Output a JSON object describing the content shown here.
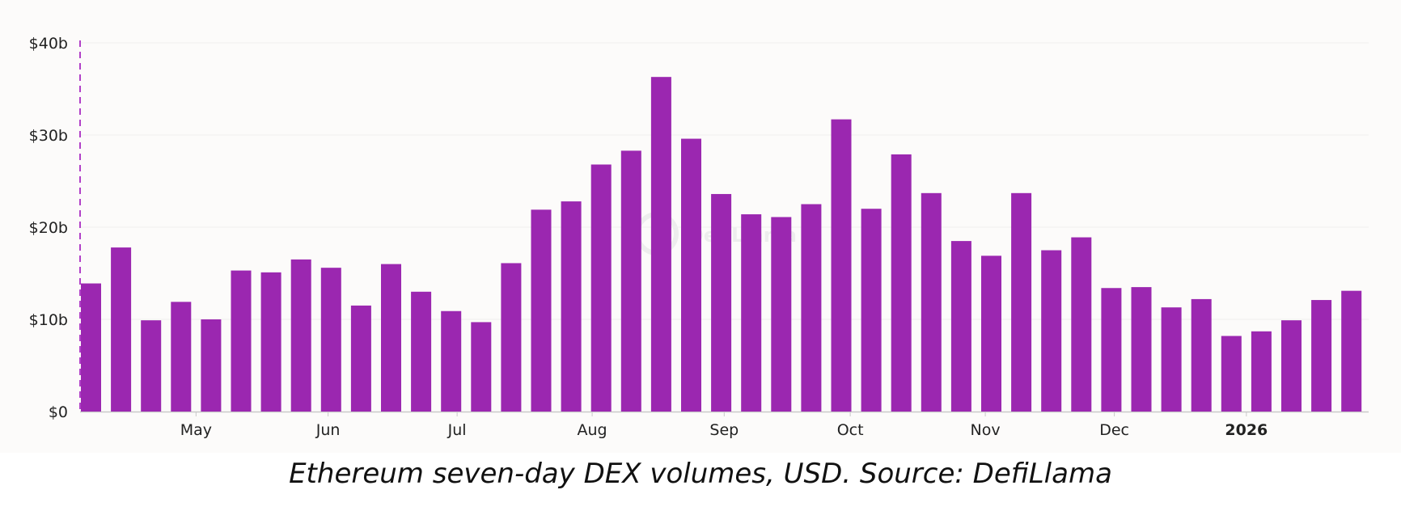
{
  "caption": "Ethereum seven-day DEX volumes, USD. Source: DefiLlama",
  "watermark": "DefiLlama",
  "chart_data": {
    "type": "bar",
    "title": "",
    "xlabel": "",
    "ylabel": "",
    "ylim": [
      0,
      40
    ],
    "y_unit": "billion USD",
    "y_ticks": [
      "$0",
      "$10b",
      "$20b",
      "$30b",
      "$40b"
    ],
    "y_tick_values": [
      0,
      10,
      20,
      30,
      40
    ],
    "x_month_labels": [
      {
        "label": "May",
        "at_bar": 3.5,
        "bold": false
      },
      {
        "label": "Jun",
        "at_bar": 7.9,
        "bold": false
      },
      {
        "label": "Jul",
        "at_bar": 12.2,
        "bold": false
      },
      {
        "label": "Aug",
        "at_bar": 16.7,
        "bold": false
      },
      {
        "label": "Sep",
        "at_bar": 21.1,
        "bold": false
      },
      {
        "label": "Oct",
        "at_bar": 25.3,
        "bold": false
      },
      {
        "label": "Nov",
        "at_bar": 29.8,
        "bold": false
      },
      {
        "label": "Dec",
        "at_bar": 34.1,
        "bold": false
      },
      {
        "label": "2026",
        "at_bar": 38.5,
        "bold": true
      }
    ],
    "grid": true,
    "color": "#9b27b0",
    "series": [
      {
        "values": [
          13.9,
          17.8,
          9.9,
          11.9,
          10.0,
          15.3,
          15.1,
          16.5,
          15.6,
          11.5,
          16.0,
          13.0,
          10.9,
          9.7,
          16.1,
          21.9,
          22.8,
          26.8,
          28.3,
          36.3,
          29.6,
          23.6,
          21.4,
          21.1,
          22.5,
          31.7,
          22.0,
          27.9,
          23.7,
          18.5,
          16.9,
          23.7,
          17.5,
          18.9,
          13.4,
          13.5,
          11.3,
          12.2,
          8.2,
          8.7,
          9.9,
          12.1,
          13.1
        ]
      }
    ]
  }
}
